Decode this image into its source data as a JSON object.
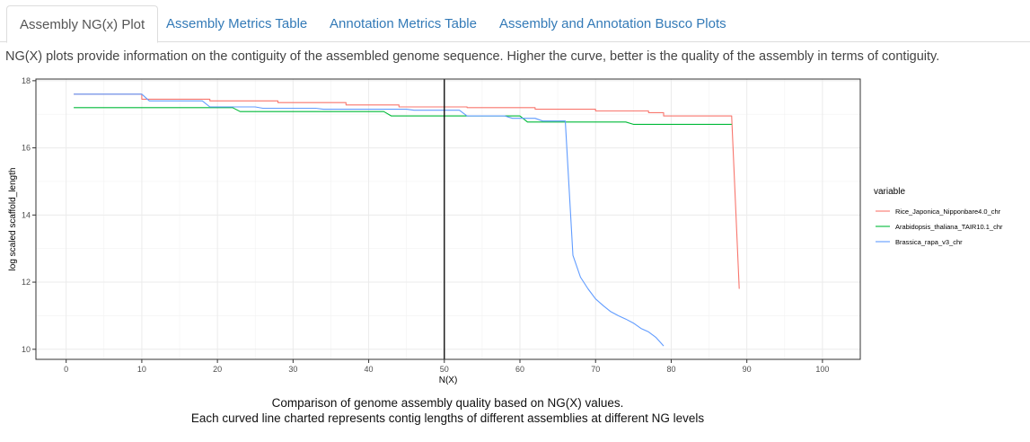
{
  "tabs": [
    {
      "label": "Assembly NG(x) Plot",
      "active": true
    },
    {
      "label": "Assembly Metrics Table",
      "active": false
    },
    {
      "label": "Annotation Metrics Table",
      "active": false
    },
    {
      "label": "Assembly and Annotation Busco Plots",
      "active": false
    }
  ],
  "description": "NG(X) plots provide information on the contiguity of the assembled genome sequence. Higher the curve, better is the quality of the assembly in terms of contiguity.",
  "caption": {
    "line1": "Comparison of genome assembly quality based on NG(X) values.",
    "line2": "Each curved line charted represents contig lengths of different assemblies at different NG levels"
  },
  "chart_data": {
    "type": "line",
    "title": "",
    "xlabel": "N(X)",
    "ylabel": "log scaled scaffold_length",
    "xlim": [
      -4,
      105
    ],
    "ylim": [
      9.7,
      18.05
    ],
    "xticks": [
      0,
      10,
      20,
      30,
      40,
      50,
      60,
      70,
      80,
      90,
      100
    ],
    "yticks": [
      10,
      12,
      14,
      16,
      18
    ],
    "grid": true,
    "vline": 50,
    "legend_title": "variable",
    "legend_position": "right",
    "series": [
      {
        "name": "Rice_Japonica_Nipponbare4.0_chr",
        "color": "#F8766D",
        "x": [
          1,
          10,
          10,
          19,
          19,
          28,
          28,
          37,
          37,
          44,
          44,
          53,
          53,
          62,
          62,
          70,
          70,
          77,
          77,
          79,
          79,
          88,
          88,
          89
        ],
        "y": [
          17.6,
          17.6,
          17.45,
          17.45,
          17.4,
          17.4,
          17.35,
          17.35,
          17.28,
          17.28,
          17.22,
          17.22,
          17.2,
          17.2,
          17.15,
          17.15,
          17.1,
          17.1,
          17.05,
          17.05,
          16.95,
          16.95,
          16.92,
          11.8
        ]
      },
      {
        "name": "Arabidopsis_thaliana_TAIR10.1_chr",
        "color": "#00BA38",
        "x": [
          1,
          22,
          23,
          42,
          43,
          60,
          61,
          74,
          75,
          88
        ],
        "y": [
          17.2,
          17.2,
          17.08,
          17.08,
          16.95,
          16.95,
          16.77,
          16.77,
          16.7,
          16.7
        ]
      },
      {
        "name": "Brassica_rapa_v3_chr",
        "color": "#619CFF",
        "x": [
          1,
          10,
          11,
          18,
          19,
          25,
          26,
          33,
          34,
          45,
          46,
          52,
          53,
          58,
          59,
          62,
          63,
          66,
          67,
          68,
          69,
          70,
          71,
          72,
          73,
          74,
          75,
          76,
          77,
          78,
          79
        ],
        "y": [
          17.6,
          17.6,
          17.4,
          17.4,
          17.22,
          17.22,
          17.18,
          17.18,
          17.15,
          17.15,
          17.12,
          17.12,
          16.95,
          16.95,
          16.88,
          16.88,
          16.8,
          16.8,
          12.8,
          12.15,
          11.8,
          11.5,
          11.3,
          11.12,
          11.0,
          10.9,
          10.78,
          10.62,
          10.52,
          10.35,
          10.1
        ]
      }
    ]
  }
}
